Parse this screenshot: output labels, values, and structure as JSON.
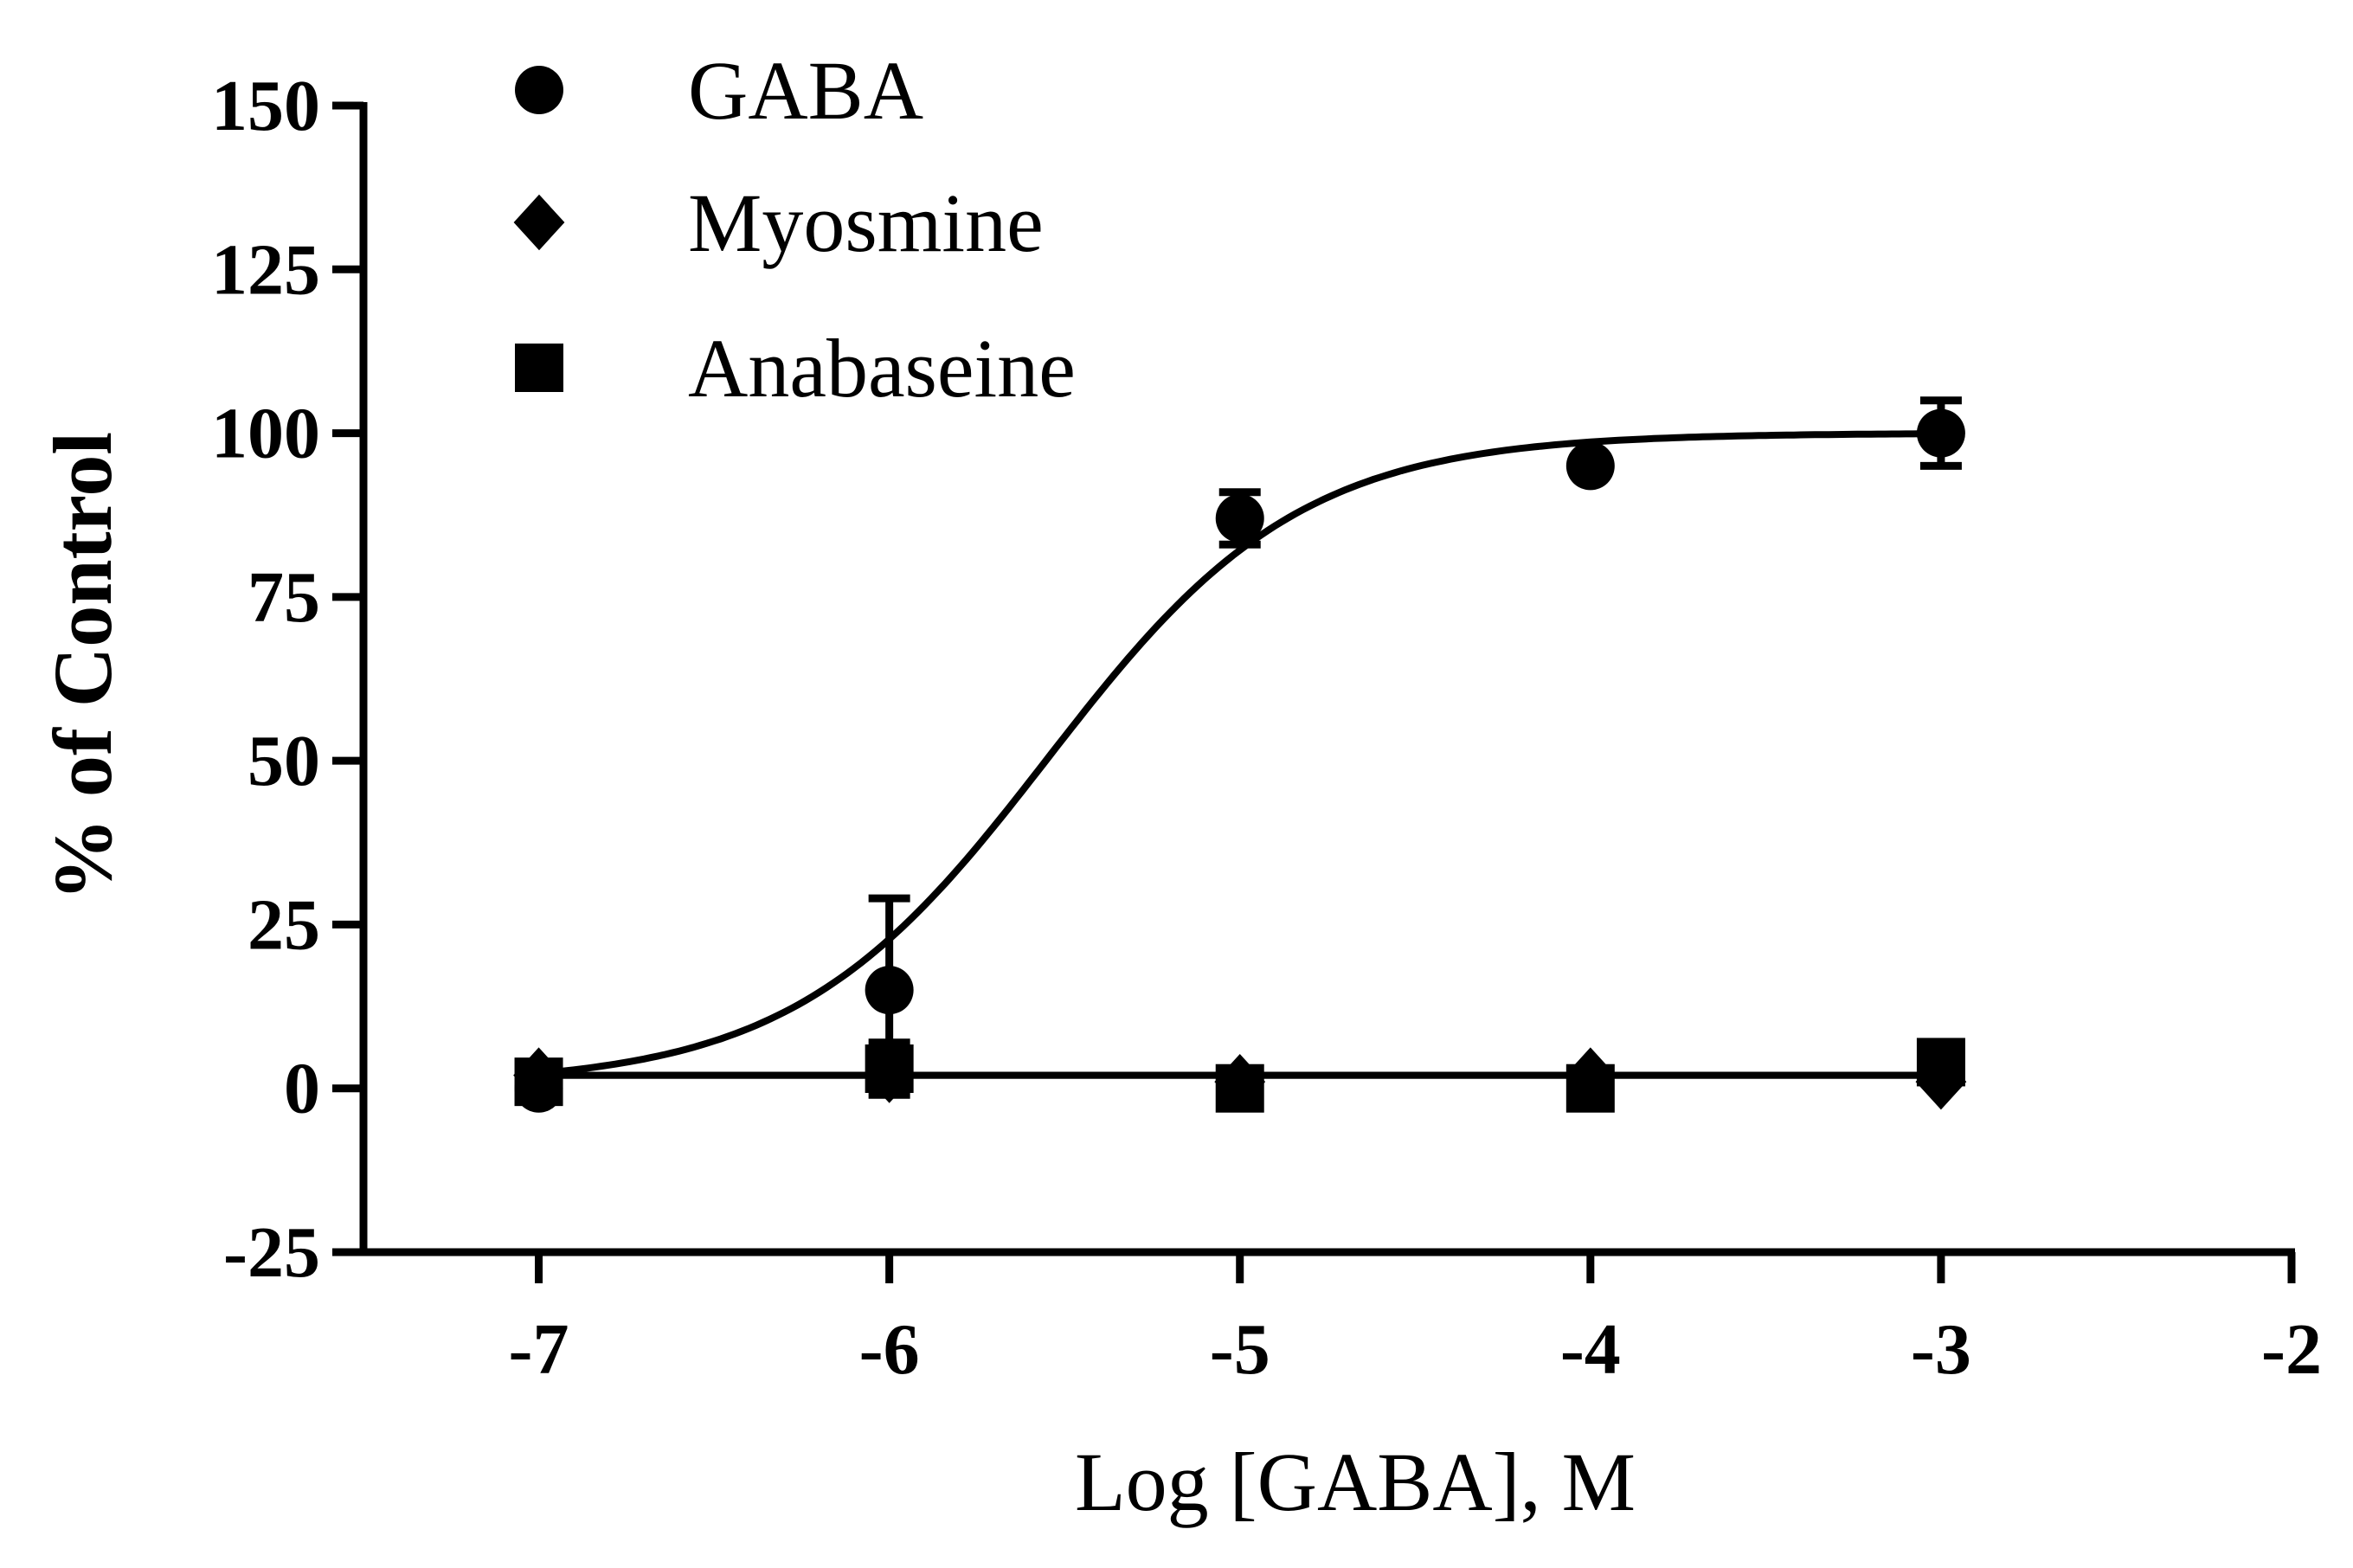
{
  "chart_data": {
    "type": "scatter",
    "title": "",
    "xlabel": "Log [GABA], M",
    "ylabel": "% of Control",
    "xlim": [
      -7.5,
      -2
    ],
    "ylim": [
      -25,
      150
    ],
    "x_ticks": [
      -7,
      -6,
      -5,
      -4,
      -3,
      -2
    ],
    "y_ticks": [
      -25,
      0,
      25,
      50,
      75,
      100,
      125,
      150
    ],
    "grid": false,
    "legend_position": "top-left",
    "series": [
      {
        "name": "GABA",
        "marker": "circle",
        "x": [
          -7,
          -6,
          -5,
          -4,
          -3
        ],
        "y": [
          0,
          15,
          87,
          95,
          100
        ],
        "error": [
          0,
          14,
          4,
          0,
          5
        ],
        "fit": {
          "type": "sigmoid",
          "bottom": 0.5,
          "top": 100,
          "logEC50": -5.55,
          "hill": 1.2
        }
      },
      {
        "name": "Myosmine",
        "marker": "diamond",
        "x": [
          -7,
          -6,
          -5,
          -4,
          -3
        ],
        "y": [
          2,
          2,
          1,
          2,
          1
        ],
        "error": [
          0,
          0,
          0,
          0,
          0
        ],
        "fit": {
          "type": "flat",
          "value": 2
        }
      },
      {
        "name": "Anabaseine",
        "marker": "square",
        "x": [
          -7,
          -6,
          -5,
          -4,
          -3
        ],
        "y": [
          1,
          3,
          0,
          0,
          4
        ],
        "error": [
          0,
          4,
          0,
          0,
          2
        ],
        "fit": {
          "type": "flat",
          "value": 2
        }
      }
    ],
    "color": "#000000"
  }
}
